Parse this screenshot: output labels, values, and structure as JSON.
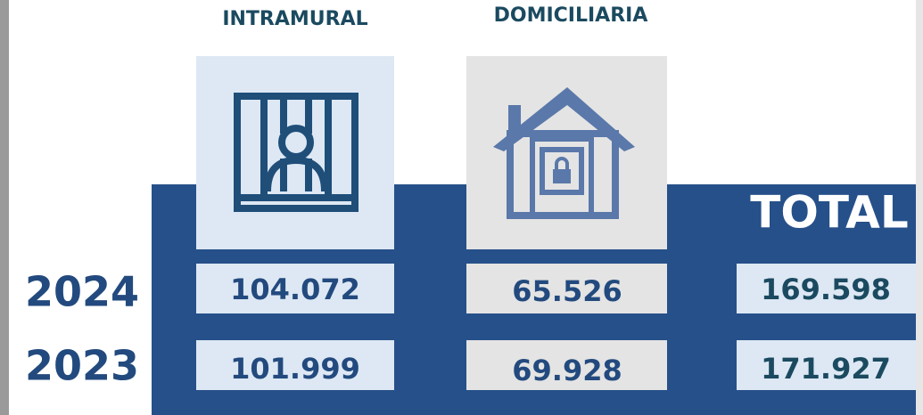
{
  "table": {
    "columns": [
      "INTRAMURAL",
      "DOMICILIARIA",
      "TOTAL"
    ],
    "rows": [
      {
        "year": "2024",
        "values": [
          "104.072",
          "65.526",
          "169.598"
        ]
      },
      {
        "year": "2023",
        "values": [
          "101.999",
          "69.928",
          "171.927"
        ]
      }
    ]
  }
}
